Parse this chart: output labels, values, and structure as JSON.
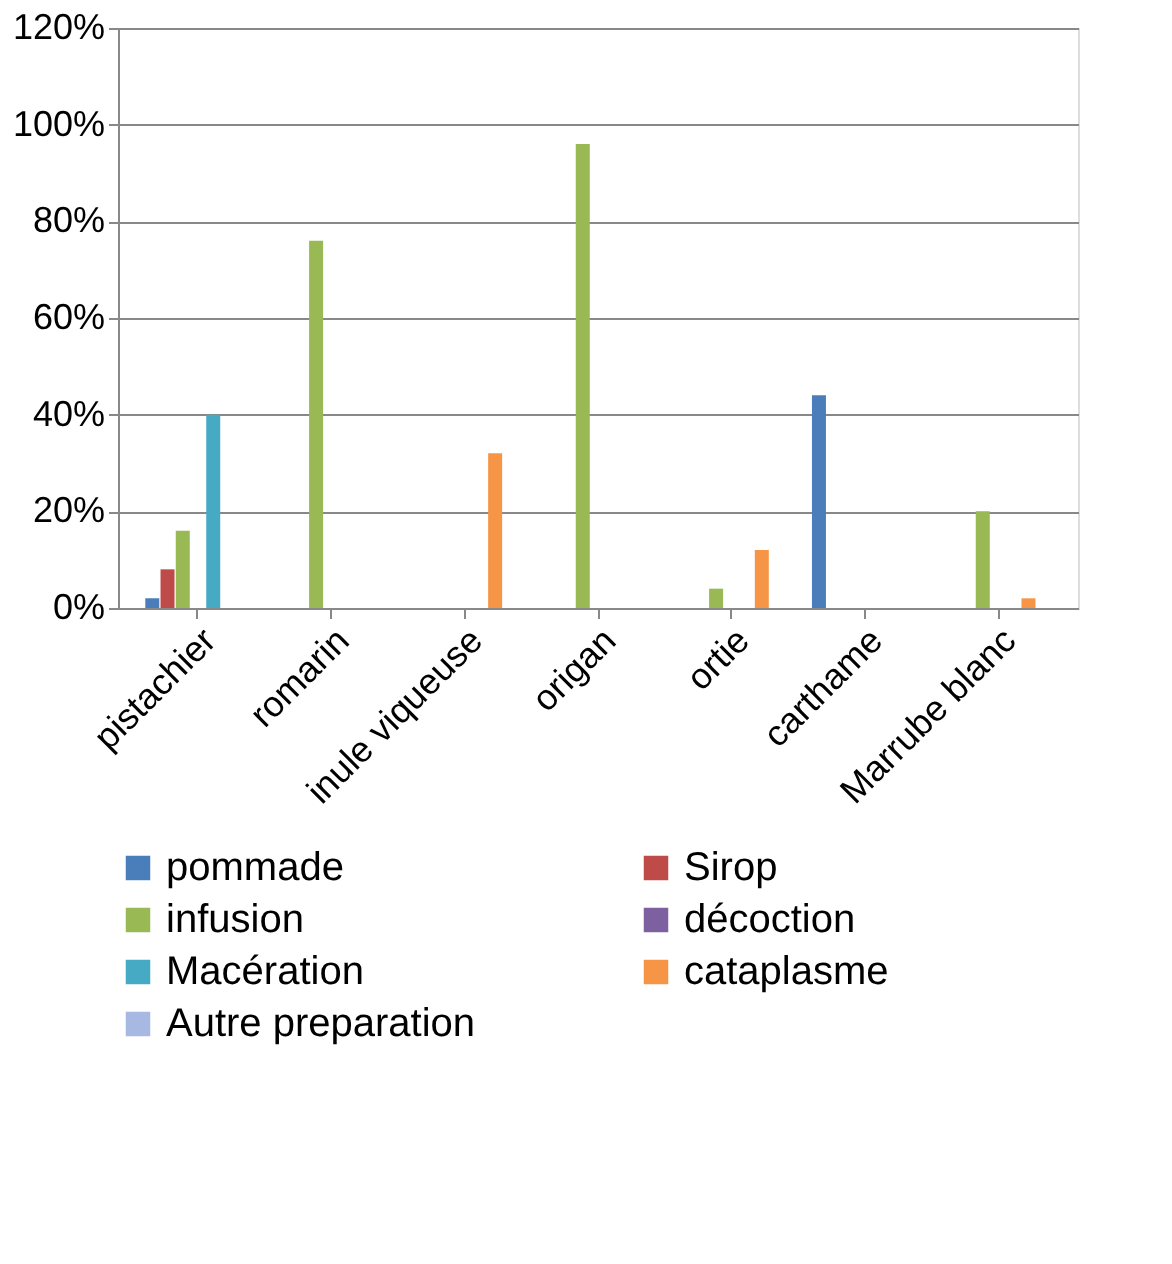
{
  "chart_data": {
    "type": "bar",
    "categories": [
      "pistachier",
      "romarin",
      "inule viqueuse",
      "origan",
      "ortie",
      "carthame",
      "Marrube blanc"
    ],
    "series": [
      {
        "name": "pommade",
        "color": "#4a7ebb",
        "values": [
          2,
          null,
          null,
          null,
          null,
          44,
          null
        ]
      },
      {
        "name": "Sirop",
        "color": "#be4b48",
        "values": [
          8,
          null,
          null,
          null,
          null,
          null,
          null
        ]
      },
      {
        "name": "infusion",
        "color": "#98b954",
        "values": [
          16,
          76,
          null,
          96,
          4,
          null,
          20
        ]
      },
      {
        "name": "décoction",
        "color": "#7d60a0",
        "values": [
          null,
          null,
          null,
          null,
          null,
          null,
          null
        ]
      },
      {
        "name": "Macération",
        "color": "#46aac5",
        "values": [
          40,
          null,
          null,
          null,
          null,
          null,
          null
        ]
      },
      {
        "name": "cataplasme",
        "color": "#f69546",
        "values": [
          null,
          null,
          32,
          null,
          12,
          null,
          2
        ]
      },
      {
        "name": "Autre preparation",
        "color": "#a7b9e3",
        "values": [
          null,
          null,
          null,
          null,
          null,
          null,
          null
        ]
      }
    ],
    "ylim": [
      0,
      120
    ],
    "yticks": [
      {
        "value": 0,
        "label": "0%"
      },
      {
        "value": 20,
        "label": "20%"
      },
      {
        "value": 40,
        "label": "40%"
      },
      {
        "value": 60,
        "label": "60%"
      },
      {
        "value": 80,
        "label": "80%"
      },
      {
        "value": 100,
        "label": "100%"
      },
      {
        "value": 120,
        "label": "120%"
      }
    ],
    "grid": "y",
    "legend": "bottom"
  }
}
